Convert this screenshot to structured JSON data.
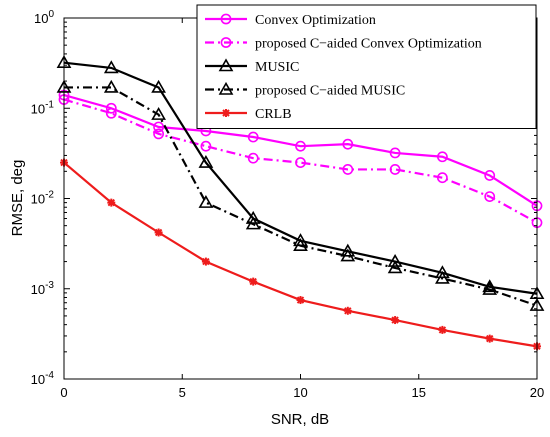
{
  "chart_data": {
    "type": "line",
    "title": "",
    "xlabel": "SNR, dB",
    "ylabel": "RMSE, deg",
    "xscale": "linear",
    "yscale": "log",
    "xlim": [
      0,
      20
    ],
    "ylim": [
      0.0001,
      1
    ],
    "xticks": [
      0,
      5,
      10,
      15,
      20
    ],
    "yticks": [
      {
        "value": 0.0001,
        "base": "10",
        "exp": "-4"
      },
      {
        "value": 0.001,
        "base": "10",
        "exp": "-3"
      },
      {
        "value": 0.01,
        "base": "10",
        "exp": "-2"
      },
      {
        "value": 0.1,
        "base": "10",
        "exp": "-1"
      },
      {
        "value": 1,
        "base": "10",
        "exp": "0"
      }
    ],
    "grid": false,
    "legend_position": "top-right",
    "x": [
      0,
      2,
      4,
      6,
      8,
      10,
      12,
      14,
      16,
      18,
      20
    ],
    "series": [
      {
        "name": "Convex Optimization",
        "color": "#ff00ff",
        "dash": "solid",
        "marker": "circle",
        "values": [
          0.14,
          0.1,
          0.062,
          0.056,
          0.048,
          0.038,
          0.04,
          0.032,
          0.029,
          0.018,
          0.0083
        ]
      },
      {
        "name": "proposed C−aided Convex Optimization",
        "color": "#ff00ff",
        "dash": "dashdot",
        "marker": "circle",
        "values": [
          0.125,
          0.088,
          0.052,
          0.038,
          0.028,
          0.025,
          0.021,
          0.021,
          0.017,
          0.0105,
          0.0054
        ]
      },
      {
        "name": "MUSIC",
        "color": "#000000",
        "dash": "solid",
        "marker": "triangle",
        "values": [
          0.32,
          0.28,
          0.17,
          0.025,
          0.006,
          0.0034,
          0.0026,
          0.002,
          0.0015,
          0.00105,
          0.00088
        ]
      },
      {
        "name": "proposed C−aided MUSIC",
        "color": "#000000",
        "dash": "dashdot",
        "marker": "triangle",
        "values": [
          0.17,
          0.17,
          0.085,
          0.009,
          0.0052,
          0.003,
          0.0023,
          0.0017,
          0.0013,
          0.00098,
          0.00065
        ]
      },
      {
        "name": "CRLB",
        "color": "#ee1c1c",
        "dash": "solid",
        "marker": "star",
        "values": [
          0.025,
          0.009,
          0.0042,
          0.002,
          0.0012,
          0.00075,
          0.00057,
          0.00045,
          0.00035,
          0.00028,
          0.00023
        ]
      }
    ]
  }
}
